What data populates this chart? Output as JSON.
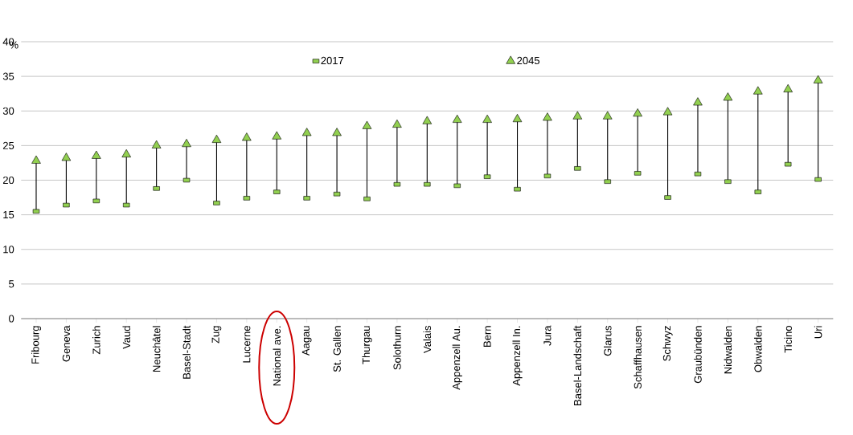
{
  "chart_data": {
    "type": "scatter",
    "ylabel": "%",
    "categories": [
      "Fribourg",
      "Geneva",
      "Zurich",
      "Vaud",
      "Neuchâtel",
      "Basel-Stadt",
      "Zug",
      "Lucerne",
      "National ave.",
      "Aagau",
      "St. Gallen",
      "Thurgau",
      "Solothurn",
      "Valais",
      "Appenzell Au.",
      "Bern",
      "Appenzell In.",
      "Jura",
      "Basel-Landschaft",
      "Glarus",
      "Schaffhausen",
      "Schwyz",
      "Graubünden",
      "Nidwalden",
      "Obwalden",
      "Ticino",
      "Uri"
    ],
    "series": [
      {
        "name": "2017",
        "color": "#92d050",
        "marker": "square",
        "values": [
          15.5,
          16.4,
          17.0,
          16.4,
          18.8,
          20.0,
          16.7,
          17.4,
          18.3,
          17.4,
          18.0,
          17.3,
          19.4,
          19.4,
          19.2,
          20.5,
          18.7,
          20.6,
          21.7,
          19.8,
          21.0,
          17.5,
          20.9,
          19.8,
          18.3,
          22.3,
          20.1
        ]
      },
      {
        "name": "2045",
        "color": "#92d050",
        "marker": "triangle",
        "values": [
          22.8,
          23.2,
          23.5,
          23.7,
          25.0,
          25.2,
          25.8,
          26.1,
          26.3,
          26.8,
          26.8,
          27.8,
          28.0,
          28.5,
          28.7,
          28.7,
          28.8,
          29.0,
          29.2,
          29.2,
          29.6,
          29.8,
          31.2,
          31.9,
          32.8,
          33.1,
          34.4
        ]
      }
    ],
    "ylim": [
      0,
      40
    ],
    "yticks": [
      0,
      5,
      10,
      15,
      20,
      25,
      30,
      35,
      40
    ],
    "grid": "y",
    "legend": "top"
  }
}
